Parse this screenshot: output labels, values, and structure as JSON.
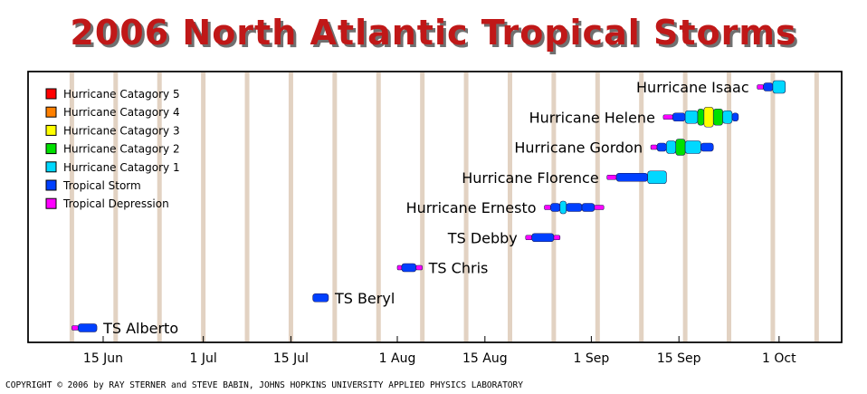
{
  "chart_data": {
    "type": "timeline",
    "title": "2006 North Atlantic Tropical Storms",
    "copyright": "COPYRIGHT © 2006 by RAY STERNER and STEVE BABIN, JOHNS HOPKINS UNIVERSITY APPLIED PHYSICS LABORATORY",
    "x_range": [
      "2006-06-03",
      "2006-10-11"
    ],
    "x_ticks": [
      {
        "date": "2006-06-15",
        "label": "15 Jun"
      },
      {
        "date": "2006-07-01",
        "label": "1 Jul"
      },
      {
        "date": "2006-07-15",
        "label": "15 Jul"
      },
      {
        "date": "2006-08-01",
        "label": "1 Aug"
      },
      {
        "date": "2006-08-15",
        "label": "15 Aug"
      },
      {
        "date": "2006-09-01",
        "label": "1 Sep"
      },
      {
        "date": "2006-09-15",
        "label": "15 Sep"
      },
      {
        "date": "2006-10-01",
        "label": "1 Oct"
      }
    ],
    "weekly_bands": [
      "2006-06-10",
      "2006-06-17",
      "2006-06-24",
      "2006-07-01",
      "2006-07-08",
      "2006-07-15",
      "2006-07-22",
      "2006-07-29",
      "2006-08-05",
      "2006-08-12",
      "2006-08-19",
      "2006-08-26",
      "2006-09-02",
      "2006-09-09",
      "2006-09-16",
      "2006-09-23",
      "2006-09-30",
      "2006-10-07"
    ],
    "legend": [
      {
        "key": "H5",
        "label": "Hurricane Catagory 5",
        "color": "#ff0000"
      },
      {
        "key": "H4",
        "label": "Hurricane Catagory 4",
        "color": "#ff8000"
      },
      {
        "key": "H3",
        "label": "Hurricane Catagory 3",
        "color": "#ffff00"
      },
      {
        "key": "H2",
        "label": "Hurricane Catagory 2",
        "color": "#00e000"
      },
      {
        "key": "H1",
        "label": "Hurricane Catagory 1",
        "color": "#00d8ff"
      },
      {
        "key": "TS",
        "label": "Tropical Storm",
        "color": "#0040ff"
      },
      {
        "key": "TD",
        "label": "Tropical Depression",
        "color": "#ff00ff"
      }
    ],
    "storms": [
      {
        "name": "TS Alberto",
        "label_side": "right",
        "segments": [
          {
            "start": "2006-06-10.0",
            "end": "2006-06-11.0",
            "category": "TD"
          },
          {
            "start": "2006-06-11.0",
            "end": "2006-06-14.0",
            "category": "TS"
          }
        ]
      },
      {
        "name": "TS Beryl",
        "label_side": "right",
        "segments": [
          {
            "start": "2006-07-18.5",
            "end": "2006-07-21.0",
            "category": "TS"
          }
        ]
      },
      {
        "name": "TS Chris",
        "label_side": "right",
        "segments": [
          {
            "start": "2006-08-01.0",
            "end": "2006-08-01.7",
            "category": "TD"
          },
          {
            "start": "2006-08-01.7",
            "end": "2006-08-04.0",
            "category": "TS"
          },
          {
            "start": "2006-08-04.0",
            "end": "2006-08-05.0",
            "category": "TD"
          }
        ]
      },
      {
        "name": "TS Debby",
        "label_side": "left",
        "segments": [
          {
            "start": "2006-08-21.5",
            "end": "2006-08-22.5",
            "category": "TD"
          },
          {
            "start": "2006-08-22.5",
            "end": "2006-08-26.0",
            "category": "TS"
          },
          {
            "start": "2006-08-26.0",
            "end": "2006-08-27.0",
            "category": "TD"
          }
        ]
      },
      {
        "name": "Hurricane Ernesto",
        "label_side": "left",
        "segments": [
          {
            "start": "2006-08-24.5",
            "end": "2006-08-25.5",
            "category": "TD"
          },
          {
            "start": "2006-08-25.5",
            "end": "2006-08-27.0",
            "category": "TS"
          },
          {
            "start": "2006-08-27.0",
            "end": "2006-08-28.0",
            "category": "H1"
          },
          {
            "start": "2006-08-28.0",
            "end": "2006-08-30.5",
            "category": "TS"
          },
          {
            "start": "2006-08-30.5",
            "end": "2006-09-01.5",
            "category": "TS"
          },
          {
            "start": "2006-09-01.5",
            "end": "2006-09-03.0",
            "category": "TD"
          }
        ]
      },
      {
        "name": "Hurricane Florence",
        "label_side": "left",
        "segments": [
          {
            "start": "2006-09-03.5",
            "end": "2006-09-05.0",
            "category": "TD"
          },
          {
            "start": "2006-09-05.0",
            "end": "2006-09-10.0",
            "category": "TS"
          },
          {
            "start": "2006-09-10.0",
            "end": "2006-09-13.0",
            "category": "H1"
          }
        ]
      },
      {
        "name": "Hurricane Gordon",
        "label_side": "left",
        "segments": [
          {
            "start": "2006-09-10.5",
            "end": "2006-09-11.5",
            "category": "TD"
          },
          {
            "start": "2006-09-11.5",
            "end": "2006-09-13.0",
            "category": "TS"
          },
          {
            "start": "2006-09-13.0",
            "end": "2006-09-14.5",
            "category": "H1"
          },
          {
            "start": "2006-09-14.5",
            "end": "2006-09-16.0",
            "category": "H2"
          },
          {
            "start": "2006-09-16.0",
            "end": "2006-09-18.5",
            "category": "H1"
          },
          {
            "start": "2006-09-18.5",
            "end": "2006-09-20.5",
            "category": "TS"
          }
        ]
      },
      {
        "name": "Hurricane Helene",
        "label_side": "left",
        "segments": [
          {
            "start": "2006-09-12.5",
            "end": "2006-09-14.0",
            "category": "TD"
          },
          {
            "start": "2006-09-14.0",
            "end": "2006-09-16.0",
            "category": "TS"
          },
          {
            "start": "2006-09-16.0",
            "end": "2006-09-18.0",
            "category": "H1"
          },
          {
            "start": "2006-09-18.0",
            "end": "2006-09-19.0",
            "category": "H2"
          },
          {
            "start": "2006-09-19.0",
            "end": "2006-09-20.5",
            "category": "H3"
          },
          {
            "start": "2006-09-20.5",
            "end": "2006-09-22.0",
            "category": "H2"
          },
          {
            "start": "2006-09-22.0",
            "end": "2006-09-23.5",
            "category": "H1"
          },
          {
            "start": "2006-09-23.5",
            "end": "2006-09-24.5",
            "category": "TS"
          }
        ]
      },
      {
        "name": "Hurricane Isaac",
        "label_side": "left",
        "segments": [
          {
            "start": "2006-09-27.5",
            "end": "2006-09-28.5",
            "category": "TD"
          },
          {
            "start": "2006-09-28.5",
            "end": "2006-09-30.0",
            "category": "TS"
          },
          {
            "start": "2006-09-30.0",
            "end": "2006-10-02.0",
            "category": "H1"
          }
        ]
      }
    ]
  }
}
